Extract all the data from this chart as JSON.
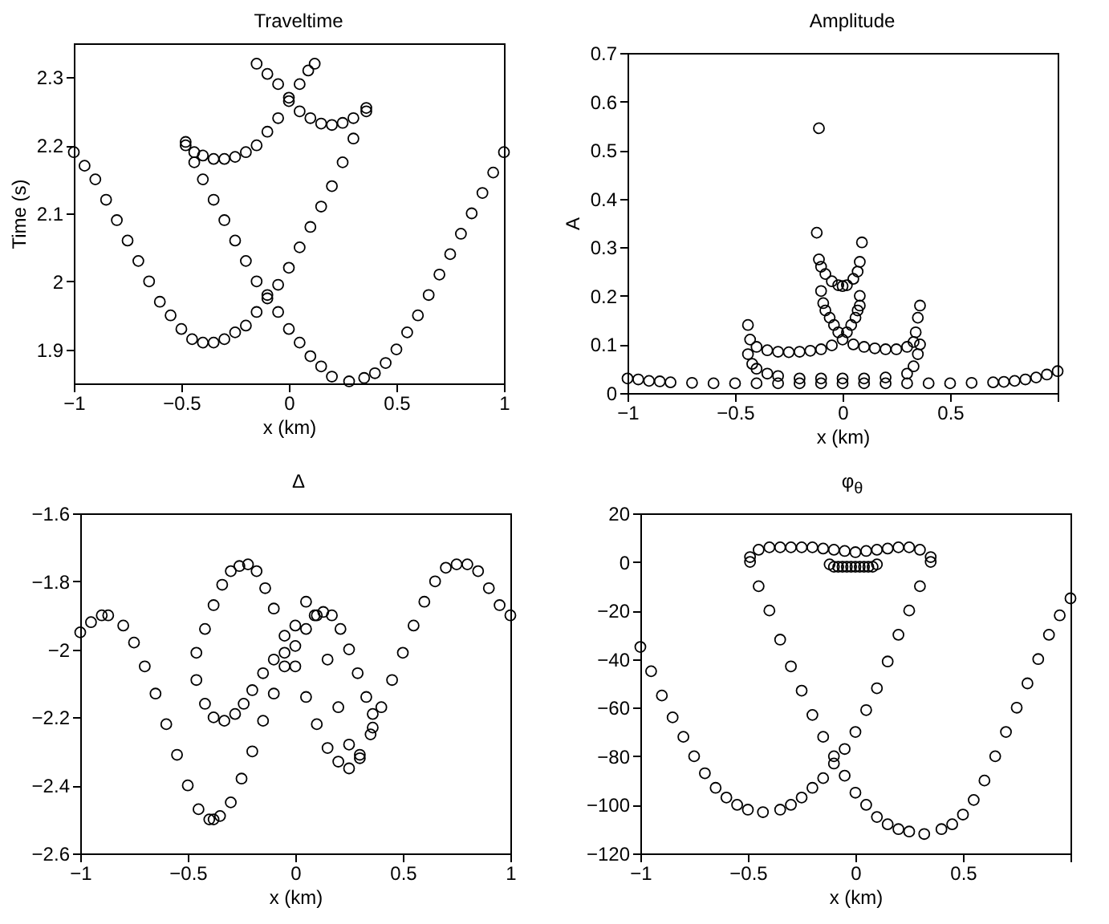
{
  "chart_data": [
    {
      "type": "scatter",
      "title": "Traveltime",
      "xlabel": "x (km)",
      "ylabel": "Time (s)",
      "xlim": [
        -1,
        1
      ],
      "xticks": [
        -1,
        -0.5,
        0,
        0.5,
        1
      ],
      "ylim": [
        1.85,
        2.35
      ],
      "yticks": [
        1.9,
        2,
        2.1,
        2.2,
        2.3
      ],
      "marker": "circle",
      "series": [
        {
          "color": "#000000",
          "x": [
            -1,
            -0.95,
            -0.9,
            -0.85,
            -0.8,
            -0.75,
            -0.7,
            -0.65,
            -0.6,
            -0.55,
            -0.5,
            -0.45,
            -0.4,
            -0.35,
            -0.3,
            -0.25,
            -0.2,
            -0.15,
            -0.1,
            -0.05,
            0,
            0.05,
            0.1,
            0.15,
            0.2,
            0.25,
            0.3,
            0.36
          ],
          "values": [
            2.19,
            2.17,
            2.15,
            2.12,
            2.09,
            2.06,
            2.03,
            2,
            1.97,
            1.95,
            1.93,
            1.915,
            1.91,
            1.91,
            1.915,
            1.925,
            1.935,
            1.955,
            1.975,
            1.995,
            2.02,
            2.05,
            2.08,
            2.11,
            2.14,
            2.175,
            2.21,
            2.25
          ]
        },
        {
          "color": "#000000",
          "x": [
            -0.48,
            -0.44,
            -0.4,
            -0.35,
            -0.3,
            -0.25,
            -0.2,
            -0.15,
            -0.1,
            -0.05,
            0,
            0.05,
            0.1,
            0.15,
            0.2,
            0.28,
            0.35,
            0.4,
            0.45,
            0.5,
            0.55,
            0.6,
            0.65,
            0.7,
            0.75,
            0.8,
            0.85,
            0.9,
            0.95,
            1
          ],
          "values": [
            2.2,
            2.175,
            2.15,
            2.12,
            2.09,
            2.06,
            2.03,
            2,
            1.98,
            1.955,
            1.93,
            1.91,
            1.89,
            1.875,
            1.86,
            1.853,
            1.858,
            1.865,
            1.88,
            1.9,
            1.925,
            1.95,
            1.98,
            2.01,
            2.04,
            2.07,
            2.1,
            2.13,
            2.16,
            2.19
          ]
        },
        {
          "color": "#000000",
          "x": [
            -0.48,
            -0.44,
            -0.4,
            -0.35,
            -0.3,
            -0.25,
            -0.2,
            -0.15,
            -0.1,
            -0.05,
            0,
            0.05,
            0.09,
            0.12
          ],
          "values": [
            2.205,
            2.19,
            2.185,
            2.18,
            2.18,
            2.183,
            2.19,
            2.2,
            2.22,
            2.24,
            2.265,
            2.29,
            2.31,
            2.32
          ]
        },
        {
          "color": "#000000",
          "x": [
            -0.15,
            -0.1,
            -0.05,
            0,
            0.05,
            0.1,
            0.15,
            0.2,
            0.25,
            0.3,
            0.36
          ],
          "values": [
            2.32,
            2.305,
            2.29,
            2.27,
            2.25,
            2.24,
            2.232,
            2.23,
            2.233,
            2.24,
            2.255
          ]
        }
      ]
    },
    {
      "type": "scatter",
      "title": "Amplitude",
      "xlabel": "x (km)",
      "ylabel": "A",
      "xlim": [
        -1,
        1
      ],
      "xticks": [
        -1,
        -0.5,
        0,
        0.5,
        {
          "value": 1,
          "label": null
        }
      ],
      "ylim": [
        0,
        0.7
      ],
      "yticks": [
        0,
        0.1,
        0.2,
        0.3,
        0.4,
        0.5,
        0.6,
        0.7
      ],
      "marker": "circle",
      "series": [
        {
          "color": "#000000",
          "x": [
            -1,
            -0.95,
            -0.9,
            -0.85,
            -0.8,
            -0.7,
            -0.6,
            -0.5,
            -0.4,
            -0.3,
            -0.2,
            -0.1,
            0,
            0.1,
            0.2,
            0.3,
            0.4,
            0.5,
            0.6,
            0.7,
            0.75,
            0.8,
            0.85,
            0.9,
            0.95,
            1
          ],
          "values": [
            0.03,
            0.028,
            0.025,
            0.024,
            0.022,
            0.021,
            0.02,
            0.02,
            0.02,
            0.02,
            0.02,
            0.02,
            0.02,
            0.02,
            0.02,
            0.02,
            0.02,
            0.02,
            0.021,
            0.022,
            0.023,
            0.025,
            0.028,
            0.032,
            0.038,
            0.045
          ]
        },
        {
          "color": "#000000",
          "x": [
            -0.44,
            -0.43,
            -0.4,
            -0.35,
            -0.3,
            -0.25,
            -0.2,
            -0.15,
            -0.1,
            -0.05,
            0,
            0.05,
            0.1,
            0.15,
            0.2,
            0.25,
            0.3,
            0.33,
            0.34,
            0.35,
            0.36,
            0.36
          ],
          "values": [
            0.14,
            0.11,
            0.095,
            0.088,
            0.085,
            0.084,
            0.085,
            0.087,
            0.09,
            0.098,
            0.11,
            0.1,
            0.095,
            0.092,
            0.09,
            0.09,
            0.095,
            0.105,
            0.125,
            0.155,
            0.18,
            0.1
          ]
        },
        {
          "color": "#000000",
          "x": [
            -0.44,
            -0.42,
            -0.4,
            -0.35,
            -0.3,
            -0.2,
            -0.1,
            0,
            0.1,
            0.2,
            0.3,
            0.33,
            0.35
          ],
          "values": [
            0.08,
            0.06,
            0.05,
            0.04,
            0.035,
            0.03,
            0.03,
            0.03,
            0.03,
            0.032,
            0.04,
            0.055,
            0.08
          ]
        },
        {
          "color": "#000000",
          "x": [
            -0.12,
            -0.11,
            -0.1,
            -0.08,
            -0.05,
            -0.02,
            0,
            0.02,
            0.05,
            0.07,
            0.08,
            0.09
          ],
          "values": [
            0.33,
            0.275,
            0.26,
            0.245,
            0.23,
            0.222,
            0.22,
            0.222,
            0.235,
            0.25,
            0.27,
            0.31
          ]
        },
        {
          "color": "#000000",
          "x": [
            -0.1,
            -0.09,
            -0.08,
            -0.06,
            -0.04,
            -0.02,
            0.02,
            0.04,
            0.06,
            0.07,
            0.08,
            0.08
          ],
          "values": [
            0.21,
            0.185,
            0.17,
            0.155,
            0.14,
            0.125,
            0.125,
            0.14,
            0.155,
            0.17,
            0.18,
            0.2
          ]
        },
        {
          "color": "#000000",
          "x": [
            -0.11
          ],
          "values": [
            0.545
          ]
        }
      ]
    },
    {
      "type": "scatter",
      "title": "Δ",
      "xlabel": "x (km)",
      "xlim": [
        -1,
        1
      ],
      "xticks": [
        -1,
        -0.5,
        0,
        0.5,
        1
      ],
      "ylim": [
        -2.6,
        -1.6
      ],
      "yticks": [
        -2.6,
        -2.4,
        -2.2,
        -2,
        -1.8,
        -1.6
      ],
      "marker": "circle",
      "series": [
        {
          "color": "#000000",
          "x": [
            -1,
            -0.95,
            -0.9,
            -0.87,
            -0.8,
            -0.75,
            -0.7,
            -0.65,
            -0.6,
            -0.55,
            -0.5,
            -0.45,
            -0.4,
            -0.38,
            -0.35,
            -0.3,
            -0.25,
            -0.2,
            -0.15,
            -0.1,
            -0.05,
            0,
            0.05,
            0.1,
            0.15,
            0.2,
            0.25,
            0.3,
            0.36
          ],
          "values": [
            -1.95,
            -1.92,
            -1.9,
            -1.9,
            -1.93,
            -1.98,
            -2.05,
            -2.13,
            -2.22,
            -2.31,
            -2.4,
            -2.47,
            -2.5,
            -2.5,
            -2.49,
            -2.45,
            -2.38,
            -2.3,
            -2.21,
            -2.13,
            -2.05,
            -1.93,
            -1.86,
            -1.9,
            -2.03,
            -2.17,
            -2.28,
            -2.31,
            -2.23
          ]
        },
        {
          "color": "#000000",
          "x": [
            -0.46,
            -0.42,
            -0.38,
            -0.34,
            -0.3,
            -0.26,
            -0.22,
            -0.18,
            -0.14,
            -0.1,
            -0.05,
            0,
            0.05,
            0.1,
            0.15,
            0.2,
            0.25,
            0.3,
            0.35,
            0.4,
            0.45,
            0.5,
            0.55,
            0.6,
            0.65,
            0.7,
            0.75,
            0.8,
            0.85,
            0.9,
            0.95,
            1
          ],
          "values": [
            -2.01,
            -1.94,
            -1.87,
            -1.81,
            -1.77,
            -1.755,
            -1.75,
            -1.77,
            -1.82,
            -1.88,
            -1.96,
            -2.05,
            -2.14,
            -2.22,
            -2.29,
            -2.33,
            -2.35,
            -2.32,
            -2.25,
            -2.17,
            -2.09,
            -2.01,
            -1.93,
            -1.86,
            -1.8,
            -1.76,
            -1.75,
            -1.75,
            -1.77,
            -1.82,
            -1.87,
            -1.9
          ]
        },
        {
          "color": "#000000",
          "x": [
            -0.46,
            -0.42,
            -0.38,
            -0.33,
            -0.28,
            -0.24,
            -0.2,
            -0.15,
            -0.1,
            -0.05,
            0,
            0.05,
            0.09,
            0.13,
            0.17,
            0.21,
            0.25,
            0.29,
            0.33,
            0.36
          ],
          "values": [
            -2.09,
            -2.16,
            -2.2,
            -2.21,
            -2.19,
            -2.16,
            -2.12,
            -2.07,
            -2.03,
            -2.01,
            -1.99,
            -1.94,
            -1.9,
            -1.89,
            -1.9,
            -1.94,
            -2,
            -2.07,
            -2.14,
            -2.19
          ]
        }
      ]
    },
    {
      "type": "scatter",
      "title": "φ$_{θ}$",
      "xlabel": "x (km)",
      "xlim": [
        -1,
        1
      ],
      "xticks": [
        -1,
        -0.5,
        0,
        0.5,
        {
          "value": 1,
          "label": null
        }
      ],
      "ylim": [
        -120,
        20
      ],
      "yticks": [
        -120,
        -100,
        -80,
        -60,
        -40,
        -20,
        0,
        20
      ],
      "marker": "circle",
      "series": [
        {
          "color": "#000000",
          "x": [
            -1,
            -0.95,
            -0.9,
            -0.85,
            -0.8,
            -0.75,
            -0.7,
            -0.65,
            -0.6,
            -0.55,
            -0.5,
            -0.43,
            -0.35,
            -0.3,
            -0.25,
            -0.2,
            -0.15,
            -0.1,
            -0.05,
            0,
            0.05,
            0.1,
            0.15,
            0.2,
            0.25,
            0.3,
            0.35
          ],
          "values": [
            -35,
            -45,
            -55,
            -64,
            -72,
            -80,
            -87,
            -93,
            -97,
            -100,
            -102,
            -103,
            -102,
            -100,
            -97,
            -93,
            -89,
            -83,
            -77,
            -70,
            -61,
            -52,
            -41,
            -30,
            -20,
            -10,
            0
          ]
        },
        {
          "color": "#000000",
          "x": [
            -0.49,
            -0.45,
            -0.4,
            -0.35,
            -0.3,
            -0.25,
            -0.2,
            -0.15,
            -0.1,
            -0.05,
            0,
            0.05,
            0.1,
            0.15,
            0.2,
            0.25,
            0.32,
            0.4,
            0.45,
            0.5,
            0.55,
            0.6,
            0.65,
            0.7,
            0.75,
            0.8,
            0.85,
            0.9,
            0.95,
            1
          ],
          "values": [
            0,
            -10,
            -20,
            -32,
            -43,
            -53,
            -63,
            -72,
            -80,
            -88,
            -95,
            -100,
            -105,
            -108,
            -110,
            -111,
            -112,
            -110,
            -108,
            -104,
            -98,
            -90,
            -80,
            -70,
            -60,
            -50,
            -40,
            -30,
            -22,
            -15
          ]
        },
        {
          "color": "#000000",
          "x": [
            -0.49,
            -0.45,
            -0.4,
            -0.35,
            -0.3,
            -0.25,
            -0.2,
            -0.15,
            -0.1,
            -0.05,
            0,
            0.05,
            0.1,
            0.15,
            0.2,
            0.25,
            0.3,
            0.35
          ],
          "values": [
            2,
            5,
            6,
            6,
            6,
            6,
            6,
            5.5,
            5,
            4.5,
            4,
            4.5,
            5,
            5.5,
            6,
            6,
            5,
            2
          ]
        },
        {
          "color": "#000000",
          "x": [
            -0.12,
            -0.1,
            -0.08,
            -0.06,
            -0.04,
            -0.02,
            0,
            0.02,
            0.04,
            0.06,
            0.08,
            0.1
          ],
          "values": [
            -1,
            -2,
            -2,
            -2,
            -2,
            -2,
            -2,
            -2,
            -2,
            -2,
            -2,
            -1
          ]
        }
      ]
    }
  ]
}
